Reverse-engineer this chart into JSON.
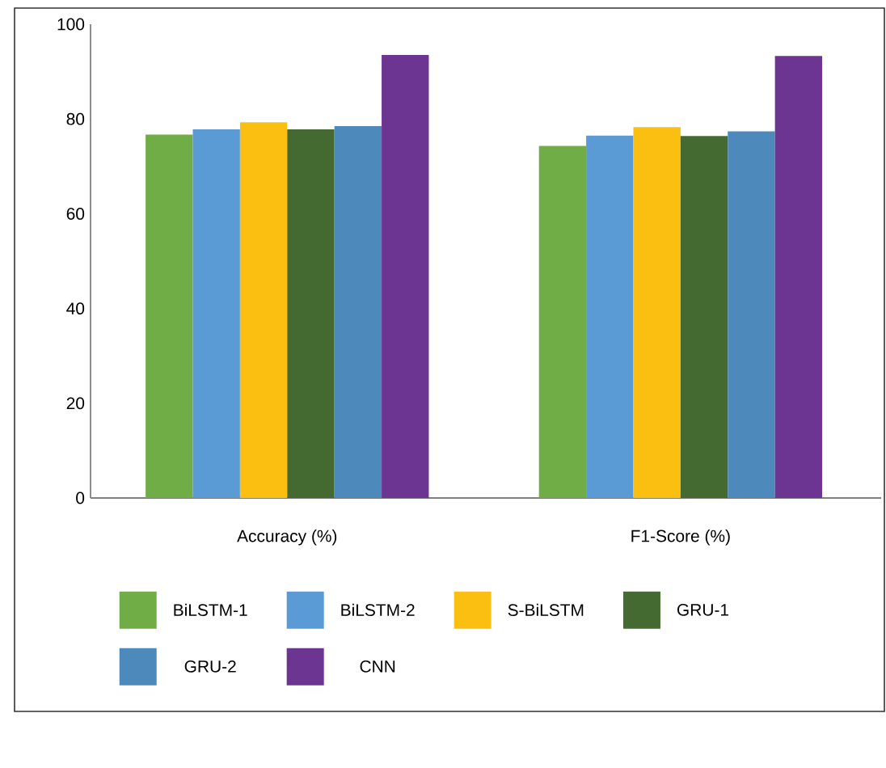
{
  "chart_data": {
    "type": "bar",
    "categories": [
      "Accuracy (%)",
      "F1-Score (%)"
    ],
    "series": [
      {
        "name": "BiLSTM-1",
        "color": "#70ad47",
        "values": [
          76.7,
          74.3
        ]
      },
      {
        "name": "BiLSTM-2",
        "color": "#5b9bd5",
        "values": [
          77.8,
          76.5
        ]
      },
      {
        "name": "S-BiLSTM",
        "color": "#fbbf12",
        "values": [
          79.3,
          78.3
        ]
      },
      {
        "name": "GRU-1",
        "color": "#446a31",
        "values": [
          77.8,
          76.4
        ]
      },
      {
        "name": "GRU-2",
        "color": "#4e89bb",
        "values": [
          78.5,
          77.4
        ]
      },
      {
        "name": "CNN",
        "color": "#6d3592",
        "values": [
          93.5,
          93.3
        ]
      }
    ],
    "ylim": [
      0,
      100
    ],
    "yticks": [
      0,
      20,
      40,
      60,
      80,
      100
    ],
    "grid": false,
    "legend": "bottom"
  }
}
